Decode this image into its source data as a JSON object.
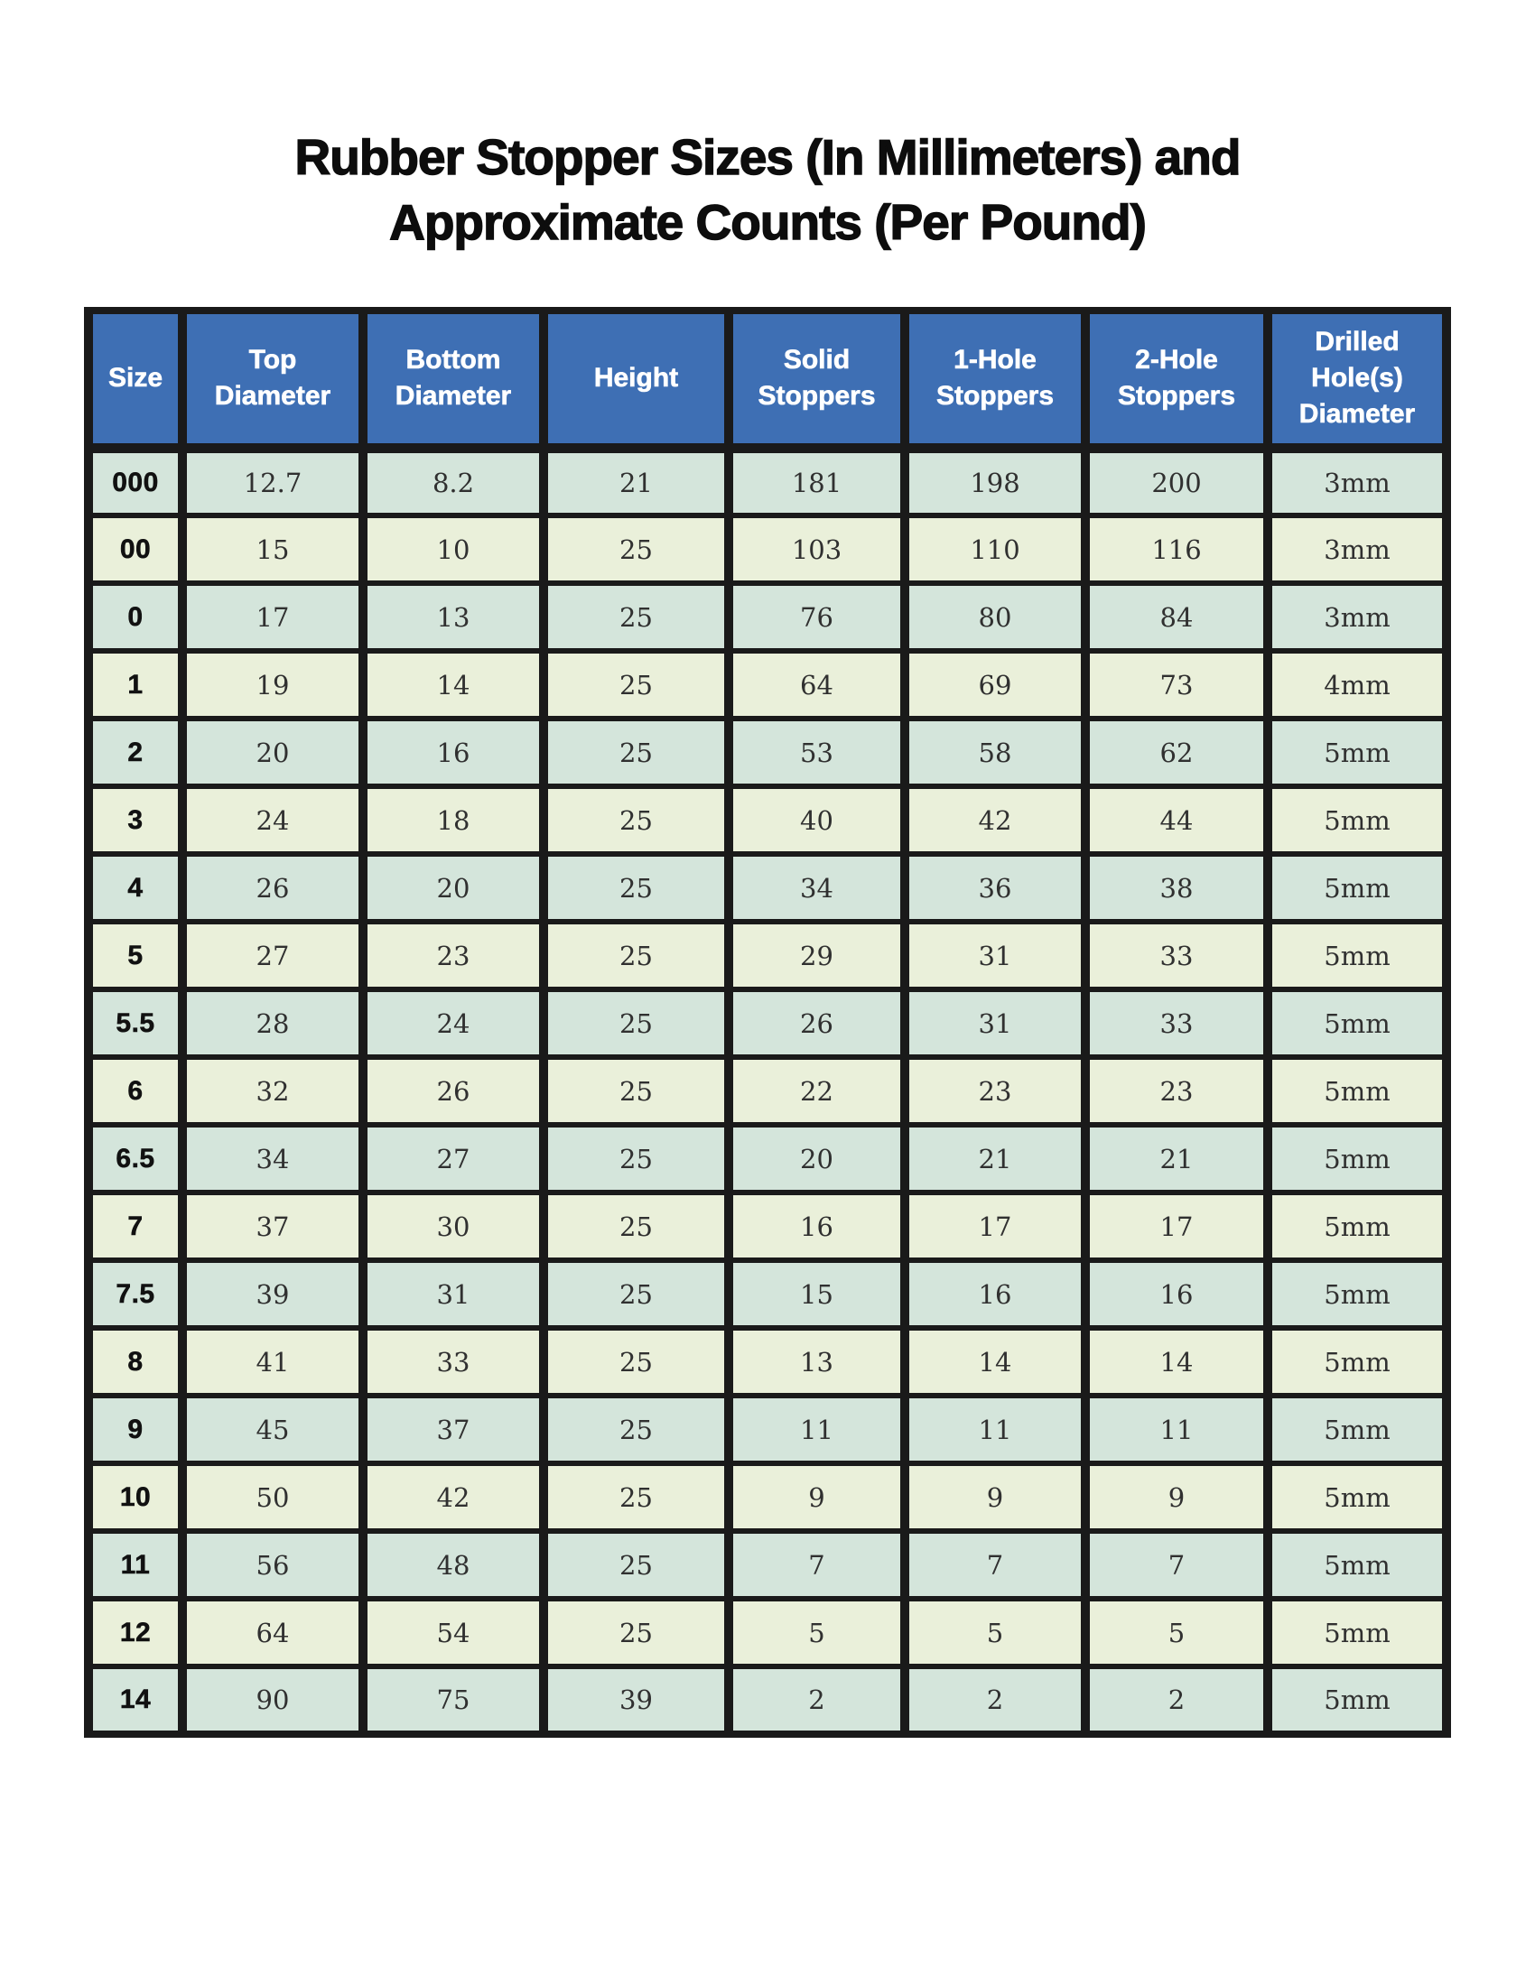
{
  "page": {
    "title_line1": "Rubber Stopper Sizes (In Millimeters) and",
    "title_line2": "Approximate Counts (Per Pound)"
  },
  "colors": {
    "page-bg": "#ffffff",
    "title-text": "#0d0d0d",
    "header-bg": "#3e6fb4",
    "header-text": "#ffffff",
    "row-teal": "#d4e5db",
    "row-green": "#eaf0da",
    "border": "#1a1a1a",
    "data-text": "#303030",
    "size-text": "#111111"
  },
  "table": {
    "columns": [
      "Size",
      "Top Diameter",
      "Bottom Diameter",
      "Height",
      "Solid Stoppers",
      "1-Hole Stoppers",
      "2-Hole Stoppers",
      "Drilled Hole(s) Diameter"
    ],
    "rows": [
      [
        "000",
        "12.7",
        "8.2",
        "21",
        "181",
        "198",
        "200",
        "3mm"
      ],
      [
        "00",
        "15",
        "10",
        "25",
        "103",
        "110",
        "116",
        "3mm"
      ],
      [
        "0",
        "17",
        "13",
        "25",
        "76",
        "80",
        "84",
        "3mm"
      ],
      [
        "1",
        "19",
        "14",
        "25",
        "64",
        "69",
        "73",
        "4mm"
      ],
      [
        "2",
        "20",
        "16",
        "25",
        "53",
        "58",
        "62",
        "5mm"
      ],
      [
        "3",
        "24",
        "18",
        "25",
        "40",
        "42",
        "44",
        "5mm"
      ],
      [
        "4",
        "26",
        "20",
        "25",
        "34",
        "36",
        "38",
        "5mm"
      ],
      [
        "5",
        "27",
        "23",
        "25",
        "29",
        "31",
        "33",
        "5mm"
      ],
      [
        "5.5",
        "28",
        "24",
        "25",
        "26",
        "31",
        "33",
        "5mm"
      ],
      [
        "6",
        "32",
        "26",
        "25",
        "22",
        "23",
        "23",
        "5mm"
      ],
      [
        "6.5",
        "34",
        "27",
        "25",
        "20",
        "21",
        "21",
        "5mm"
      ],
      [
        "7",
        "37",
        "30",
        "25",
        "16",
        "17",
        "17",
        "5mm"
      ],
      [
        "7.5",
        "39",
        "31",
        "25",
        "15",
        "16",
        "16",
        "5mm"
      ],
      [
        "8",
        "41",
        "33",
        "25",
        "13",
        "14",
        "14",
        "5mm"
      ],
      [
        "9",
        "45",
        "37",
        "25",
        "11",
        "11",
        "11",
        "5mm"
      ],
      [
        "10",
        "50",
        "42",
        "25",
        "9",
        "9",
        "9",
        "5mm"
      ],
      [
        "11",
        "56",
        "48",
        "25",
        "7",
        "7",
        "7",
        "5mm"
      ],
      [
        "12",
        "64",
        "54",
        "25",
        "5",
        "5",
        "5",
        "5mm"
      ],
      [
        "14",
        "90",
        "75",
        "39",
        "2",
        "2",
        "2",
        "5mm"
      ]
    ]
  }
}
